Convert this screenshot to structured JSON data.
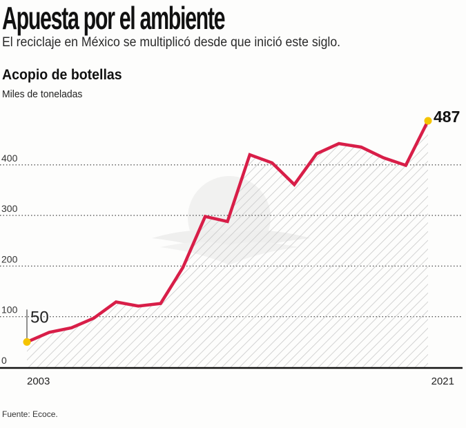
{
  "header": {
    "title": "Apuesta por el ambiente",
    "subtitle": "El reciclaje en México se multiplicó desde que inició este siglo."
  },
  "footer": {
    "source": "Fuente: Ecoce."
  },
  "colors": {
    "line": "#d81e48",
    "marker": "#f5c400",
    "grid": "#555555",
    "axis": "#111111",
    "hatch": "#c8c8c8"
  },
  "chart_data": {
    "type": "area",
    "title": "Acopio de botellas",
    "ylabel": "Miles de toneladas",
    "xlabel": "",
    "x": [
      2003,
      2004,
      2005,
      2006,
      2007,
      2008,
      2009,
      2010,
      2011,
      2012,
      2013,
      2014,
      2015,
      2016,
      2017,
      2018,
      2019,
      2020,
      2021
    ],
    "values": [
      50,
      69,
      78,
      97,
      129,
      121,
      126,
      197,
      298,
      288,
      420,
      404,
      361,
      422,
      442,
      435,
      414,
      399,
      487
    ],
    "ylim": [
      0,
      500
    ],
    "yticks": [
      "0",
      "100",
      "200",
      "300",
      "400"
    ],
    "ytick_values": [
      0,
      100,
      200,
      300,
      400
    ],
    "xtick_labels": [
      "2003",
      "2021"
    ],
    "grid": true,
    "grid_style": "dotted",
    "fill": "hatched",
    "annotations": [
      {
        "x": 2003,
        "label": "50"
      },
      {
        "x": 2021,
        "label": "487"
      }
    ],
    "legend": "none"
  }
}
